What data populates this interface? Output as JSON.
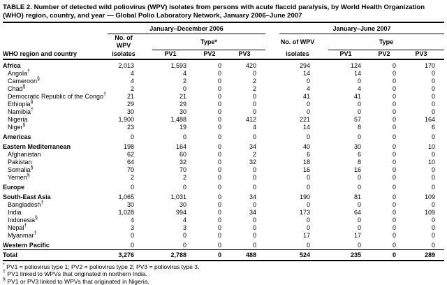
{
  "title": "TABLE 2. Number of detected wild poliovirus (WPV) isolates from persons with acute flaccid paralysis, by World Health Organization (WHO) region, country, and year — Global Polio Laboratory Network, January 2006–June 2007",
  "header": {
    "region_col": "WHO region and country",
    "groups": [
      {
        "label": "January–December 2006",
        "isolates_line1": "No. of WPV",
        "isolates_line2": "isolates",
        "type_label": "Type*",
        "pv_cols": [
          "PV1",
          "PV2",
          "PV3"
        ]
      },
      {
        "label": "January–June 2007",
        "isolates_line1": "No. of WPV",
        "isolates_line2": "isolates",
        "type_label": "Type",
        "pv_cols": [
          "PV1",
          "PV2",
          "PV3"
        ]
      }
    ]
  },
  "rows": [
    {
      "label": "Africa",
      "marker": "",
      "kind": "region",
      "v2006": [
        "2,013",
        "1,593",
        "0",
        "420"
      ],
      "v2007": [
        "294",
        "124",
        "0",
        "170"
      ]
    },
    {
      "label": "Angola",
      "marker": "†",
      "kind": "country",
      "v2006": [
        "4",
        "4",
        "0",
        "0"
      ],
      "v2007": [
        "14",
        "14",
        "0",
        "0"
      ]
    },
    {
      "label": "Cameroon",
      "marker": "§",
      "kind": "country",
      "v2006": [
        "4",
        "2",
        "0",
        "2"
      ],
      "v2007": [
        "0",
        "0",
        "0",
        "0"
      ]
    },
    {
      "label": "Chad",
      "marker": "§",
      "kind": "country",
      "v2006": [
        "2",
        "0",
        "0",
        "2"
      ],
      "v2007": [
        "4",
        "4",
        "0",
        "0"
      ]
    },
    {
      "label": "Democratic Republic of the Congo",
      "marker": "†",
      "kind": "country",
      "v2006": [
        "21",
        "21",
        "0",
        "0"
      ],
      "v2007": [
        "41",
        "41",
        "0",
        "0"
      ]
    },
    {
      "label": "Ethiopia",
      "marker": "§",
      "kind": "country",
      "v2006": [
        "29",
        "29",
        "0",
        "0"
      ],
      "v2007": [
        "0",
        "0",
        "0",
        "0"
      ]
    },
    {
      "label": "Namibia",
      "marker": "†",
      "kind": "country",
      "v2006": [
        "30",
        "30",
        "0",
        "0"
      ],
      "v2007": [
        "0",
        "0",
        "0",
        "0"
      ]
    },
    {
      "label": "Nigeria",
      "marker": "",
      "kind": "country",
      "v2006": [
        "1,900",
        "1,488",
        "0",
        "412"
      ],
      "v2007": [
        "221",
        "57",
        "0",
        "164"
      ]
    },
    {
      "label": "Niger",
      "marker": "§",
      "kind": "country",
      "v2006": [
        "23",
        "19",
        "0",
        "4"
      ],
      "v2007": [
        "14",
        "8",
        "0",
        "6"
      ]
    },
    {
      "label": "Americas",
      "marker": "",
      "kind": "region",
      "v2006": [
        "0",
        "0",
        "0",
        "0"
      ],
      "v2007": [
        "0",
        "0",
        "0",
        "0"
      ]
    },
    {
      "label": "Eastern Mediterranean",
      "marker": "",
      "kind": "region",
      "v2006": [
        "198",
        "164",
        "0",
        "34"
      ],
      "v2007": [
        "40",
        "30",
        "0",
        "10"
      ]
    },
    {
      "label": "Afghanistan",
      "marker": "",
      "kind": "country",
      "v2006": [
        "62",
        "60",
        "0",
        "2"
      ],
      "v2007": [
        "6",
        "6",
        "0",
        "0"
      ]
    },
    {
      "label": "Pakistan",
      "marker": "",
      "kind": "country",
      "v2006": [
        "64",
        "32",
        "0",
        "32"
      ],
      "v2007": [
        "18",
        "8",
        "0",
        "10"
      ]
    },
    {
      "label": "Somalia",
      "marker": "§",
      "kind": "country",
      "v2006": [
        "70",
        "70",
        "0",
        "0"
      ],
      "v2007": [
        "16",
        "16",
        "0",
        "0"
      ]
    },
    {
      "label": "Yemen",
      "marker": "§",
      "kind": "country",
      "v2006": [
        "2",
        "2",
        "0",
        "0"
      ],
      "v2007": [
        "0",
        "0",
        "0",
        "0"
      ]
    },
    {
      "label": "Europe",
      "marker": "",
      "kind": "region",
      "v2006": [
        "0",
        "0",
        "0",
        "0"
      ],
      "v2007": [
        "0",
        "0",
        "0",
        "0"
      ]
    },
    {
      "label": "South-East Asia",
      "marker": "",
      "kind": "region",
      "v2006": [
        "1,065",
        "1,031",
        "0",
        "34"
      ],
      "v2007": [
        "190",
        "81",
        "0",
        "109"
      ]
    },
    {
      "label": "Bangladesh",
      "marker": "†",
      "kind": "country",
      "v2006": [
        "30",
        "30",
        "0",
        "0"
      ],
      "v2007": [
        "0",
        "0",
        "0",
        "0"
      ]
    },
    {
      "label": "India",
      "marker": "",
      "kind": "country",
      "v2006": [
        "1,028",
        "994",
        "0",
        "34"
      ],
      "v2007": [
        "173",
        "64",
        "0",
        "109"
      ]
    },
    {
      "label": "Indonesia",
      "marker": "§",
      "kind": "country",
      "v2006": [
        "4",
        "4",
        "0",
        "0"
      ],
      "v2007": [
        "0",
        "0",
        "0",
        "0"
      ]
    },
    {
      "label": "Nepal",
      "marker": "†",
      "kind": "country",
      "v2006": [
        "3",
        "3",
        "0",
        "0"
      ],
      "v2007": [
        "0",
        "0",
        "0",
        "0"
      ]
    },
    {
      "label": "Myanmar",
      "marker": "†",
      "kind": "country",
      "v2006": [
        "0",
        "0",
        "0",
        "0"
      ],
      "v2007": [
        "17",
        "17",
        "0",
        "0"
      ]
    },
    {
      "label": "Western Pacific",
      "marker": "",
      "kind": "region",
      "v2006": [
        "0",
        "0",
        "0",
        "0"
      ],
      "v2007": [
        "0",
        "0",
        "0",
        "0"
      ]
    },
    {
      "label": "Total",
      "marker": "",
      "kind": "total",
      "v2006": [
        "3,276",
        "2,788",
        "0",
        "488"
      ],
      "v2007": [
        "524",
        "235",
        "0",
        "289"
      ]
    }
  ],
  "footnotes": [
    {
      "marker": "*",
      "text": "PV1 = poliovirus type 1; PV2 = poliovirus type 2; PV3 = poliovirus type 3."
    },
    {
      "marker": "†",
      "text": "PV1 linked to WPVs that originated in northern India."
    },
    {
      "marker": "§",
      "text": "PV1 or PV3 linked to WPVs that originated in Nigeria."
    }
  ]
}
